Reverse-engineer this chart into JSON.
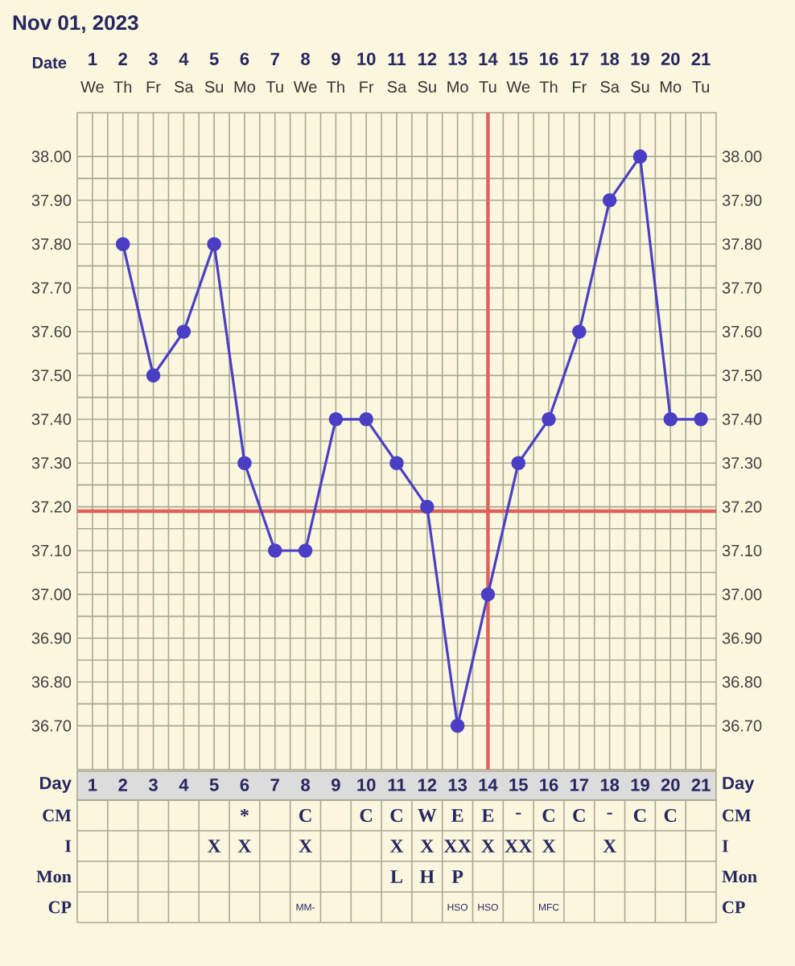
{
  "chart_data": [
    {
      "type": "line",
      "title": "Nov 01, 2023",
      "xlabel": "Date",
      "categories": [
        "1",
        "2",
        "3",
        "4",
        "5",
        "6",
        "7",
        "8",
        "9",
        "10",
        "11",
        "12",
        "13",
        "14",
        "15",
        "16",
        "17",
        "18",
        "19",
        "20",
        "21"
      ],
      "annotations": [
        "We",
        "Th",
        "Fr",
        "Sa",
        "Su",
        "Mo",
        "Tu",
        "We",
        "Th",
        "Fr",
        "Sa",
        "Su",
        "Mo",
        "Tu",
        "We",
        "Th",
        "Fr",
        "Sa",
        "Su",
        "Mo",
        "Tu"
      ],
      "series": [
        {
          "color": "#4a3fc4",
          "values": [
            null,
            37.8,
            37.5,
            37.6,
            37.8,
            37.3,
            37.1,
            37.1,
            37.4,
            37.4,
            37.3,
            37.2,
            36.7,
            37.0,
            37.3,
            37.4,
            37.6,
            37.9,
            38.0,
            37.4,
            37.4
          ]
        }
      ],
      "marker": "circle",
      "grid": true,
      "ylim": [
        36.6,
        38.1
      ],
      "yticks": [
        {
          "value": 36.7,
          "label": "36.70"
        },
        {
          "value": 36.8,
          "label": "36.80"
        },
        {
          "value": 36.9,
          "label": "36.90"
        },
        {
          "value": 37.0,
          "label": "37.00"
        },
        {
          "value": 37.1,
          "label": "37.10"
        },
        {
          "value": 37.2,
          "label": "37.20"
        },
        {
          "value": 37.3,
          "label": "37.30"
        },
        {
          "value": 37.4,
          "label": "37.40"
        },
        {
          "value": 37.5,
          "label": "37.50"
        },
        {
          "value": 37.6,
          "label": "37.60"
        },
        {
          "value": 37.7,
          "label": "37.70"
        },
        {
          "value": 37.8,
          "label": "37.80"
        },
        {
          "value": 37.9,
          "label": "37.90"
        },
        {
          "value": 38.0,
          "label": "38.00"
        }
      ],
      "y2lim": [
        36.6,
        38.1
      ],
      "y2ticks": [
        {
          "value": 36.7,
          "label": "36.70"
        },
        {
          "value": 36.8,
          "label": "36.80"
        },
        {
          "value": 36.9,
          "label": "36.90"
        },
        {
          "value": 37.0,
          "label": "37.00"
        },
        {
          "value": 37.1,
          "label": "37.10"
        },
        {
          "value": 37.2,
          "label": "37.20"
        },
        {
          "value": 37.3,
          "label": "37.30"
        },
        {
          "value": 37.4,
          "label": "37.40"
        },
        {
          "value": 37.5,
          "label": "37.50"
        },
        {
          "value": 37.6,
          "label": "37.60"
        },
        {
          "value": 37.7,
          "label": "37.70"
        },
        {
          "value": 37.8,
          "label": "37.80"
        },
        {
          "value": 37.9,
          "label": "37.90"
        },
        {
          "value": 38.0,
          "label": "38.00"
        }
      ],
      "ref_lines": [
        {
          "axis": "y",
          "value": 37.19,
          "color": "#e0605a"
        },
        {
          "axis": "x",
          "value": "14",
          "color": "#e0605a"
        }
      ]
    },
    {
      "type": "heatmap",
      "xlabel": "Day",
      "categories": [
        "1",
        "2",
        "3",
        "4",
        "5",
        "6",
        "7",
        "8",
        "9",
        "10",
        "11",
        "12",
        "13",
        "14",
        "15",
        "16",
        "17",
        "18",
        "19",
        "20",
        "21"
      ],
      "y_categories": [
        "CM",
        "I",
        "Mon",
        "CP"
      ],
      "y2_categories": [
        "CM",
        "I",
        "Mon",
        "CP"
      ],
      "cells": [
        [
          null,
          null,
          null,
          null,
          null,
          null,
          null,
          null,
          null,
          null,
          null,
          null,
          null,
          null,
          null,
          null,
          null,
          null,
          null,
          null,
          null
        ],
        [
          null,
          null,
          null,
          null,
          null,
          null,
          null,
          null,
          null,
          null,
          null,
          null,
          null,
          null,
          null,
          null,
          null,
          null,
          null,
          null,
          null
        ],
        [
          null,
          null,
          null,
          null,
          null,
          null,
          null,
          null,
          null,
          null,
          null,
          null,
          null,
          null,
          null,
          null,
          null,
          null,
          null,
          null,
          null
        ],
        [
          null,
          null,
          null,
          null,
          null,
          null,
          null,
          null,
          null,
          null,
          null,
          null,
          null,
          null,
          null,
          null,
          null,
          null,
          null,
          null,
          null
        ]
      ],
      "cell_labels": [
        [
          null,
          null,
          null,
          null,
          null,
          "*",
          null,
          "C",
          null,
          "C",
          "C",
          "W",
          "E",
          "E",
          "-",
          "C",
          "C",
          "-",
          "C",
          "C",
          null
        ],
        [
          null,
          null,
          null,
          null,
          "X",
          "X",
          null,
          "X",
          null,
          null,
          "X",
          "X",
          "XX",
          "X",
          "XX",
          "X",
          null,
          "X",
          null,
          null,
          null
        ],
        [
          null,
          null,
          null,
          null,
          null,
          null,
          null,
          null,
          null,
          null,
          "L",
          "H",
          "P",
          null,
          null,
          null,
          null,
          null,
          null,
          null,
          null
        ],
        [
          null,
          null,
          null,
          null,
          null,
          null,
          null,
          "MM-",
          null,
          null,
          null,
          null,
          "HSO",
          "HSO",
          null,
          "MFC",
          null,
          null,
          null,
          null,
          null
        ]
      ]
    }
  ]
}
